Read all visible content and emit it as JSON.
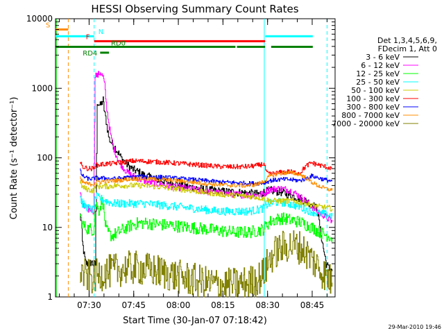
{
  "chart_data": {
    "type": "line",
    "title": "HESSI Observing Summary Count Rates",
    "xlabel": "Start Time (30-Jan-07 07:18:42)",
    "ylabel": "Count Rate (s⁻¹ detector⁻¹)",
    "x_unit": "minutes after 07:18:42",
    "xlim": [
      0,
      94
    ],
    "ylim": [
      1,
      10000
    ],
    "y_scale": "log",
    "x_ticks": [
      {
        "value": 11.3,
        "label": "07:30"
      },
      {
        "value": 26.3,
        "label": "07:45"
      },
      {
        "value": 41.3,
        "label": "08:00"
      },
      {
        "value": 56.3,
        "label": "08:15"
      },
      {
        "value": 71.3,
        "label": "08:30"
      },
      {
        "value": 86.3,
        "label": "08:45"
      }
    ],
    "y_ticks": [
      {
        "value": 1,
        "label": "1"
      },
      {
        "value": 10,
        "label": "10"
      },
      {
        "value": 100,
        "label": "100"
      },
      {
        "value": 1000,
        "label": "1000"
      },
      {
        "value": 10000,
        "label": "10000"
      }
    ],
    "legend_header": [
      "Det 1,3,4,5,6,9,",
      "FDecim 1, Att 0"
    ],
    "legend_placement": "right",
    "series": [
      {
        "name": "3 - 6 keV",
        "color": "#000000",
        "x": [
          8.2,
          8.6,
          9,
          9.6,
          10,
          10.5,
          11,
          11.5,
          12,
          12.4,
          12.8,
          13.3,
          14,
          15,
          16,
          16.3,
          16.8,
          17.4,
          18,
          19,
          20,
          21,
          22,
          23,
          24,
          26,
          28,
          30,
          35,
          40,
          45,
          50,
          55,
          60,
          65,
          68,
          70,
          71,
          72,
          74,
          76,
          78,
          80,
          82,
          84,
          86,
          88,
          89,
          90,
          91,
          92,
          93
        ],
        "y": [
          15,
          12,
          6,
          4,
          3.2,
          3,
          3.1,
          3,
          3.2,
          3,
          3,
          2.9,
          640,
          560,
          680,
          500,
          380,
          260,
          185,
          160,
          140,
          120,
          100,
          90,
          80,
          68,
          62,
          55,
          48,
          42,
          38,
          35,
          33,
          32,
          31,
          30,
          32,
          33,
          34,
          33,
          32,
          30,
          28,
          26,
          24,
          22,
          18,
          9,
          5,
          3,
          2.5,
          2.5
        ],
        "noise": 0.06
      },
      {
        "name": "6 - 12 keV",
        "color": "#ff00ff",
        "x": [
          8.2,
          8.6,
          9,
          10,
          11,
          12,
          12.8,
          13.3,
          14,
          15,
          16,
          16.5,
          17,
          18,
          19,
          20,
          21,
          22,
          23,
          24,
          26,
          28,
          30,
          35,
          40,
          45,
          50,
          55,
          60,
          65,
          68,
          70,
          71,
          72,
          74,
          76,
          78,
          80,
          82,
          84,
          86,
          88,
          90,
          92,
          93
        ],
        "y": [
          32,
          25,
          20,
          19,
          18,
          18,
          17,
          1600,
          1500,
          1700,
          1450,
          1100,
          600,
          280,
          160,
          120,
          95,
          80,
          70,
          62,
          55,
          50,
          46,
          42,
          38,
          36,
          33,
          31,
          30,
          29,
          29,
          30,
          33,
          35,
          36,
          36,
          35,
          32,
          28,
          24,
          20,
          17,
          15,
          13,
          12
        ],
        "noise": 0.05
      },
      {
        "name": "12 - 25 keV",
        "color": "#00ff00",
        "x": [
          8.2,
          9,
          10,
          11,
          12,
          12.8,
          13.3,
          14,
          14.5,
          15,
          15.5,
          16,
          16.5,
          17,
          18,
          19,
          20,
          22,
          24,
          26,
          28,
          30,
          35,
          40,
          45,
          50,
          55,
          60,
          65,
          68,
          70,
          71,
          72,
          74,
          76,
          78,
          80,
          82,
          84,
          86,
          88,
          90,
          92,
          93
        ],
        "y": [
          15,
          11,
          10,
          9.5,
          9.5,
          9,
          22,
          20,
          17,
          20,
          24,
          22,
          13,
          9,
          8,
          7.5,
          8,
          9,
          10,
          11,
          11.5,
          11.5,
          11,
          10.5,
          10,
          9.5,
          9,
          8.5,
          8.5,
          9,
          9.5,
          11,
          12,
          13,
          13.5,
          13,
          12.5,
          12,
          11,
          10,
          9,
          8,
          7.5,
          7
        ],
        "noise": 0.09
      },
      {
        "name": "25 - 50 keV",
        "color": "#00ffff",
        "x": [
          8.2,
          9,
          10,
          11,
          12,
          12.8,
          13.3,
          14,
          15,
          16,
          17,
          18,
          20,
          22,
          24,
          26,
          28,
          30,
          35,
          40,
          45,
          50,
          55,
          60,
          65,
          68,
          70,
          71,
          72,
          74,
          76,
          78,
          80,
          82,
          84,
          86,
          88,
          90,
          92,
          93
        ],
        "y": [
          28,
          22,
          20,
          19,
          18,
          18,
          28,
          27,
          26,
          25,
          24,
          23,
          22,
          22,
          22,
          22,
          22,
          22,
          21,
          20,
          19,
          18,
          17,
          17,
          17,
          18,
          19,
          21,
          22,
          23,
          23,
          22,
          21,
          20,
          18,
          17,
          16,
          15.5,
          15,
          14.5
        ],
        "noise": 0.06
      },
      {
        "name": "50 - 100 keV",
        "color": "#cccc00",
        "x": [
          8.2,
          9,
          10,
          11,
          12,
          12.8,
          13.3,
          14,
          15,
          16,
          17,
          18,
          20,
          22,
          24,
          26,
          28,
          30,
          35,
          40,
          45,
          50,
          55,
          60,
          65,
          68,
          70,
          71,
          72,
          74,
          76,
          78,
          80,
          82,
          84,
          86,
          88,
          90,
          92,
          93
        ],
        "y": [
          45,
          38,
          36,
          35,
          34,
          34,
          40,
          39,
          39,
          39,
          39,
          39,
          40,
          40,
          40,
          40,
          40,
          40,
          38,
          36,
          34,
          32,
          30,
          29,
          28,
          27,
          26,
          25,
          24,
          24,
          24,
          24,
          24,
          23,
          22,
          21,
          20,
          19.5,
          19,
          18.5
        ],
        "noise": 0.04
      },
      {
        "name": "100 - 300 keV",
        "color": "#ff0000",
        "x": [
          8.2,
          9,
          10,
          11,
          12,
          12.8,
          13.3,
          14,
          15,
          16,
          17,
          18,
          20,
          22,
          24,
          26,
          28,
          30,
          35,
          40,
          45,
          50,
          55,
          60,
          65,
          68,
          70,
          71,
          72,
          74,
          76,
          78,
          80,
          82,
          84,
          86,
          88,
          90,
          92,
          93
        ],
        "y": [
          85,
          75,
          72,
          70,
          70,
          70,
          80,
          78,
          80,
          81,
          82,
          82,
          84,
          86,
          88,
          90,
          90,
          89,
          87,
          84,
          81,
          78,
          75,
          74,
          75,
          78,
          82,
          60,
          58,
          60,
          62,
          63,
          62,
          60,
          75,
          85,
          80,
          76,
          72,
          70
        ],
        "noise": 0.035
      },
      {
        "name": "300 - 800 keV",
        "color": "#0000ff",
        "x": [
          8.2,
          9,
          10,
          11,
          12,
          12.8,
          13.3,
          14,
          15,
          16,
          17,
          18,
          20,
          22,
          24,
          26,
          28,
          30,
          35,
          40,
          45,
          50,
          55,
          60,
          65,
          68,
          70,
          71,
          72,
          74,
          76,
          78,
          80,
          82,
          84,
          86,
          88,
          90,
          92,
          93
        ],
        "y": [
          65,
          55,
          52,
          50,
          50,
          50,
          52,
          51,
          51,
          51,
          51,
          50,
          50,
          51,
          52,
          53,
          54,
          54,
          53,
          51,
          49,
          47,
          45,
          44,
          43,
          43,
          44,
          45,
          47,
          48,
          49,
          49,
          48,
          47,
          50,
          55,
          52,
          49,
          47,
          46
        ],
        "noise": 0.03
      },
      {
        "name": "800 - 7000 keV",
        "color": "#ff8c00",
        "x": [
          8.2,
          9,
          10,
          11,
          12,
          12.8,
          13.3,
          14,
          15,
          16,
          17,
          18,
          20,
          22,
          24,
          26,
          28,
          30,
          35,
          40,
          45,
          50,
          55,
          60,
          65,
          68,
          70,
          71,
          72,
          74,
          76,
          78,
          80,
          82,
          84,
          86,
          88,
          90,
          92,
          93
        ],
        "y": [
          50,
          45,
          43,
          42,
          42,
          42,
          45,
          45,
          45,
          46,
          46,
          46,
          47,
          48,
          49,
          50,
          50,
          50,
          49,
          47,
          45,
          43,
          41,
          40,
          40,
          42,
          46,
          50,
          55,
          58,
          60,
          61,
          60,
          58,
          52,
          45,
          40,
          37,
          35,
          34
        ],
        "noise": 0.03
      },
      {
        "name": "7000 - 20000 keV",
        "color": "#808000",
        "x": [
          8.2,
          9,
          10,
          11,
          12,
          12.8,
          13.3,
          14,
          15,
          16,
          17,
          18,
          20,
          22,
          24,
          26,
          28,
          30,
          35,
          40,
          45,
          50,
          55,
          60,
          65,
          68,
          70,
          71,
          72,
          74,
          76,
          78,
          80,
          82,
          84,
          86,
          88,
          90,
          92,
          93
        ],
        "y": [
          2.5,
          2.2,
          2,
          2,
          1.9,
          1.9,
          2,
          2,
          2.1,
          2.2,
          2.3,
          2.3,
          2.4,
          2.5,
          2.6,
          2.6,
          2.6,
          2.5,
          2.3,
          2,
          1.8,
          1.6,
          1.5,
          1.5,
          1.6,
          1.8,
          2.2,
          2.8,
          3.5,
          4.5,
          5,
          5.5,
          5.5,
          5.2,
          4.5,
          3.5,
          2.8,
          2.2,
          1.8,
          1.6
        ],
        "noise": 0.25
      }
    ],
    "flags": [
      {
        "label": "S",
        "color": "#ff8c00",
        "y": 7000,
        "segments": [
          [
            0,
            4.3
          ]
        ]
      },
      {
        "label": "N",
        "color": "#00ffff",
        "y": 5600,
        "segments": [
          [
            0,
            13
          ],
          [
            70.5,
            86.5
          ]
        ]
      },
      {
        "label": "F",
        "color": "#ff0000",
        "y": 4750,
        "segments": [
          [
            13,
            70.5
          ]
        ]
      },
      {
        "label": "RD0",
        "color": "#008000",
        "y": 3950,
        "segments": [
          [
            0,
            60.5
          ],
          [
            61,
            70.5
          ],
          [
            72.5,
            86.5
          ]
        ]
      },
      {
        "label": "RD4",
        "color": "#008000",
        "y": 3250,
        "segments": [
          [
            15,
            18
          ]
        ]
      }
    ],
    "vertical_markers": [
      {
        "x": 4.3,
        "color": "#ff8c00",
        "style": "dashed"
      },
      {
        "x": 13,
        "color": "#00ffff",
        "style": "dashed"
      },
      {
        "x": 70.2,
        "color": "#00ffff",
        "style": "solid"
      },
      {
        "x": 91.3,
        "color": "#00ffff",
        "style": "dashed"
      },
      {
        "x": 0.3,
        "color": "#00ff00",
        "style": "solid"
      }
    ],
    "footer_stamp": "29-Mar-2010 19:46",
    "grid": false
  }
}
